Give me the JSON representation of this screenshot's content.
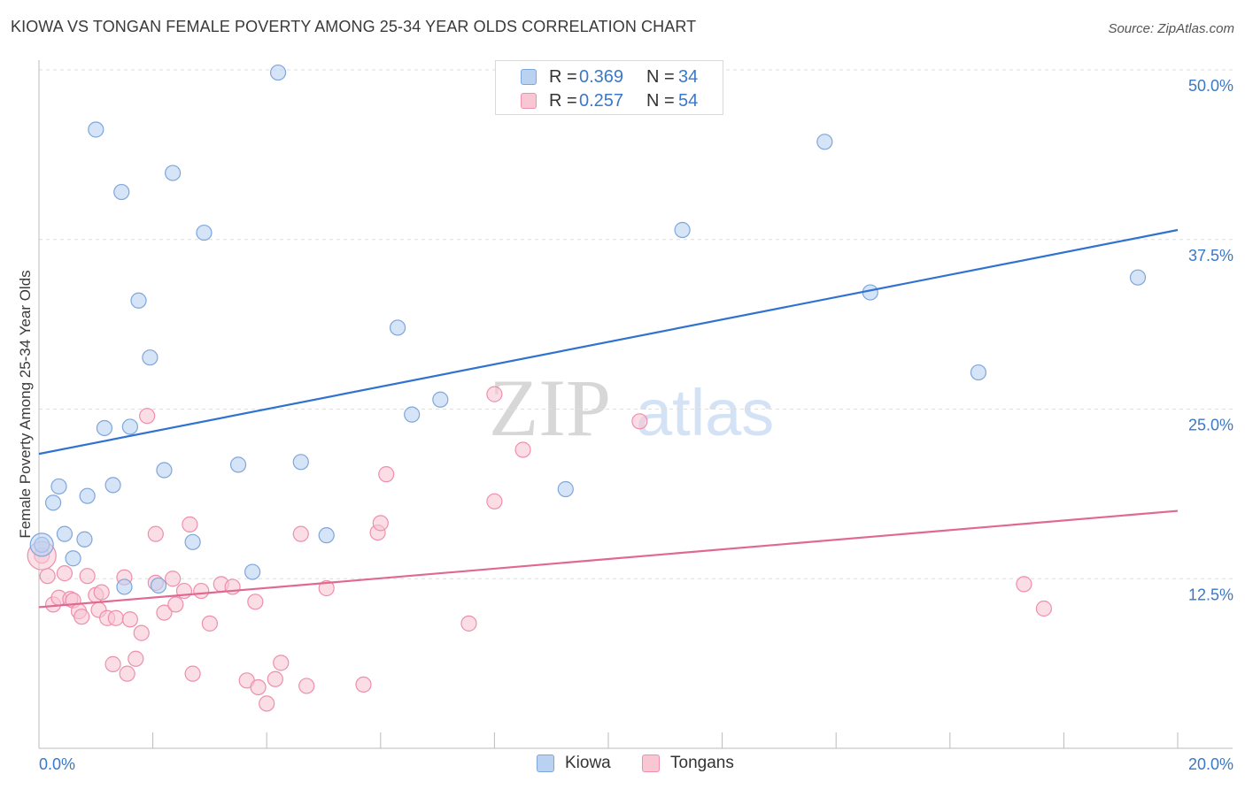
{
  "title": "KIOWA VS TONGAN FEMALE POVERTY AMONG 25-34 YEAR OLDS CORRELATION CHART",
  "source": "Source: ZipAtlas.com",
  "watermark": {
    "zip": "ZIP",
    "atlas": "atlas"
  },
  "legend_top": [
    {
      "r_label": "R = ",
      "r_value": "0.369",
      "n_label": "N = ",
      "n_value": "34"
    },
    {
      "r_label": "R = ",
      "r_value": "0.257",
      "n_label": "N = ",
      "n_value": "54"
    }
  ],
  "chart_data": {
    "type": "scatter",
    "title": "KIOWA VS TONGAN FEMALE POVERTY AMONG 25-34 YEAR OLDS CORRELATION CHART",
    "xlabel": "",
    "ylabel": "Female Poverty Among 25-34 Year Olds",
    "xlim": [
      0,
      20
    ],
    "ylim": [
      0,
      50
    ],
    "x_tick_labels": [
      "0.0%",
      "20.0%"
    ],
    "y_ticks": [
      12.5,
      25.0,
      37.5,
      50.0
    ],
    "y_tick_labels": [
      "12.5%",
      "25.0%",
      "37.5%",
      "50.0%"
    ],
    "grid": true,
    "legend_position": "bottom-center",
    "colors": {
      "kiowa_fill": "#b9d2f2",
      "kiowa_stroke": "#7fa6db",
      "kiowa_line": "#2f72cf",
      "tongans_fill": "#f9c6d4",
      "tongans_stroke": "#ee8fab",
      "tongans_line": "#e06892",
      "tick_label": "#3a78c9"
    },
    "series": [
      {
        "name": "Kiowa",
        "trend": {
          "x": [
            0,
            20
          ],
          "y": [
            21.7,
            38.2
          ]
        },
        "points": [
          [
            0.05,
            15.0
          ],
          [
            0.25,
            18.1
          ],
          [
            0.35,
            19.3
          ],
          [
            0.45,
            15.8
          ],
          [
            0.6,
            14.0
          ],
          [
            0.8,
            15.4
          ],
          [
            0.85,
            18.6
          ],
          [
            1.0,
            45.6
          ],
          [
            1.15,
            23.6
          ],
          [
            1.3,
            19.4
          ],
          [
            1.45,
            41.0
          ],
          [
            1.5,
            11.9
          ],
          [
            1.6,
            23.7
          ],
          [
            1.75,
            33.0
          ],
          [
            1.95,
            28.8
          ],
          [
            2.1,
            12.0
          ],
          [
            2.2,
            20.5
          ],
          [
            2.35,
            42.4
          ],
          [
            2.7,
            15.2
          ],
          [
            2.9,
            38.0
          ],
          [
            3.5,
            20.9
          ],
          [
            3.75,
            13.0
          ],
          [
            4.2,
            49.8
          ],
          [
            4.6,
            21.1
          ],
          [
            5.05,
            15.7
          ],
          [
            6.3,
            31.0
          ],
          [
            6.55,
            24.6
          ],
          [
            7.05,
            25.7
          ],
          [
            9.25,
            19.1
          ],
          [
            11.3,
            38.2
          ],
          [
            13.8,
            44.7
          ],
          [
            14.6,
            33.6
          ],
          [
            16.5,
            27.7
          ],
          [
            19.3,
            34.7
          ]
        ]
      },
      {
        "name": "Tongans",
        "trend": {
          "x": [
            0,
            20
          ],
          "y": [
            10.4,
            17.5
          ]
        },
        "points": [
          [
            0.05,
            14.2
          ],
          [
            0.15,
            12.7
          ],
          [
            0.25,
            10.6
          ],
          [
            0.35,
            11.1
          ],
          [
            0.45,
            12.9
          ],
          [
            0.55,
            11.0
          ],
          [
            0.6,
            10.9
          ],
          [
            0.7,
            10.1
          ],
          [
            0.75,
            9.7
          ],
          [
            0.85,
            12.7
          ],
          [
            1.0,
            11.3
          ],
          [
            1.05,
            10.2
          ],
          [
            1.1,
            11.5
          ],
          [
            1.2,
            9.6
          ],
          [
            1.3,
            6.2
          ],
          [
            1.35,
            9.6
          ],
          [
            1.5,
            12.6
          ],
          [
            1.55,
            5.5
          ],
          [
            1.6,
            9.5
          ],
          [
            1.7,
            6.6
          ],
          [
            1.8,
            8.5
          ],
          [
            1.9,
            24.5
          ],
          [
            2.05,
            12.2
          ],
          [
            2.05,
            15.8
          ],
          [
            2.2,
            10.0
          ],
          [
            2.35,
            12.5
          ],
          [
            2.4,
            10.6
          ],
          [
            2.55,
            11.6
          ],
          [
            2.65,
            16.5
          ],
          [
            2.7,
            5.5
          ],
          [
            2.85,
            11.6
          ],
          [
            3.0,
            9.2
          ],
          [
            3.2,
            12.1
          ],
          [
            3.4,
            11.9
          ],
          [
            3.65,
            5.0
          ],
          [
            3.8,
            10.8
          ],
          [
            3.85,
            4.5
          ],
          [
            4.0,
            3.3
          ],
          [
            4.15,
            5.1
          ],
          [
            4.25,
            6.3
          ],
          [
            4.6,
            15.8
          ],
          [
            4.7,
            4.6
          ],
          [
            5.05,
            11.8
          ],
          [
            5.7,
            4.7
          ],
          [
            5.95,
            15.9
          ],
          [
            6.0,
            16.6
          ],
          [
            6.1,
            20.2
          ],
          [
            7.55,
            9.2
          ],
          [
            8.0,
            26.1
          ],
          [
            8.0,
            18.2
          ],
          [
            8.5,
            22.0
          ],
          [
            10.55,
            24.1
          ],
          [
            17.3,
            12.1
          ],
          [
            17.65,
            10.3
          ]
        ]
      }
    ]
  }
}
